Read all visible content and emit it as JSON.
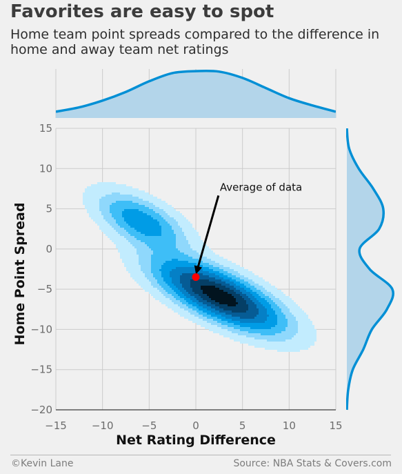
{
  "header": {
    "title": "Favorites are easy to spot",
    "subtitle": "Home team point spreads compared to the difference in home and away team net ratings"
  },
  "footer": {
    "credit": "©Kevin Lane",
    "source": "Source: NBA Stats & Covers.com"
  },
  "colors": {
    "background": "#f0f0f0",
    "grid": "#cbcbcb",
    "kde_line": "#008fd5",
    "kde_fill": "#b3d5ea",
    "mean_marker": "#ff0000",
    "contour_levels": [
      "#c2ecfe",
      "#8fd8fc",
      "#3ebef7",
      "#009ce6",
      "#0580c6",
      "#065c95",
      "#053f66",
      "#02141f"
    ]
  },
  "chart_data": {
    "type": "joint_kde",
    "xlabel": "Net Rating Difference",
    "ylabel": "Home Point Spread",
    "xlim": [
      -15,
      15
    ],
    "ylim": [
      -20,
      15
    ],
    "x_ticks": [
      -15,
      -10,
      -5,
      0,
      5,
      10,
      15
    ],
    "y_ticks": [
      15,
      10,
      5,
      0,
      -5,
      -10,
      -15,
      -20
    ],
    "grid": true,
    "joint_modes": [
      {
        "x": 2.5,
        "y": -5.8,
        "weight": 1.0,
        "sd_x": 4.2,
        "sd_y": 2.8,
        "corr": -0.72
      },
      {
        "x": -5.8,
        "y": 3.4,
        "weight": 0.42,
        "sd_x": 3.0,
        "sd_y": 2.3,
        "corr": -0.6
      }
    ],
    "contour_levels_rel": [
      0.045,
      0.13,
      0.22,
      0.33,
      0.46,
      0.6,
      0.75,
      0.9
    ],
    "mean_point": {
      "x": 0,
      "y": -3.5
    },
    "annotation": {
      "text": "Average of data",
      "xytext": [
        2.5,
        7.5
      ],
      "xy": [
        0,
        -3.5
      ]
    },
    "x_marginal": {
      "x": [
        -15,
        -12.5,
        -10,
        -7.5,
        -5,
        -2.5,
        0,
        2.5,
        5,
        7.5,
        10,
        12.5,
        15
      ],
      "density": [
        0.13,
        0.22,
        0.36,
        0.54,
        0.76,
        0.93,
        0.97,
        0.96,
        0.83,
        0.62,
        0.41,
        0.26,
        0.13
      ]
    },
    "y_marginal": {
      "y": [
        15,
        12.5,
        10,
        7.5,
        5,
        2.5,
        0,
        -2.5,
        -5,
        -7.5,
        -10,
        -12.5,
        -15,
        -17.5,
        -20
      ],
      "density": [
        0.0,
        0.05,
        0.26,
        0.58,
        0.8,
        0.71,
        0.28,
        0.5,
        1.0,
        0.88,
        0.55,
        0.36,
        0.13,
        0.03,
        0.0
      ]
    }
  }
}
